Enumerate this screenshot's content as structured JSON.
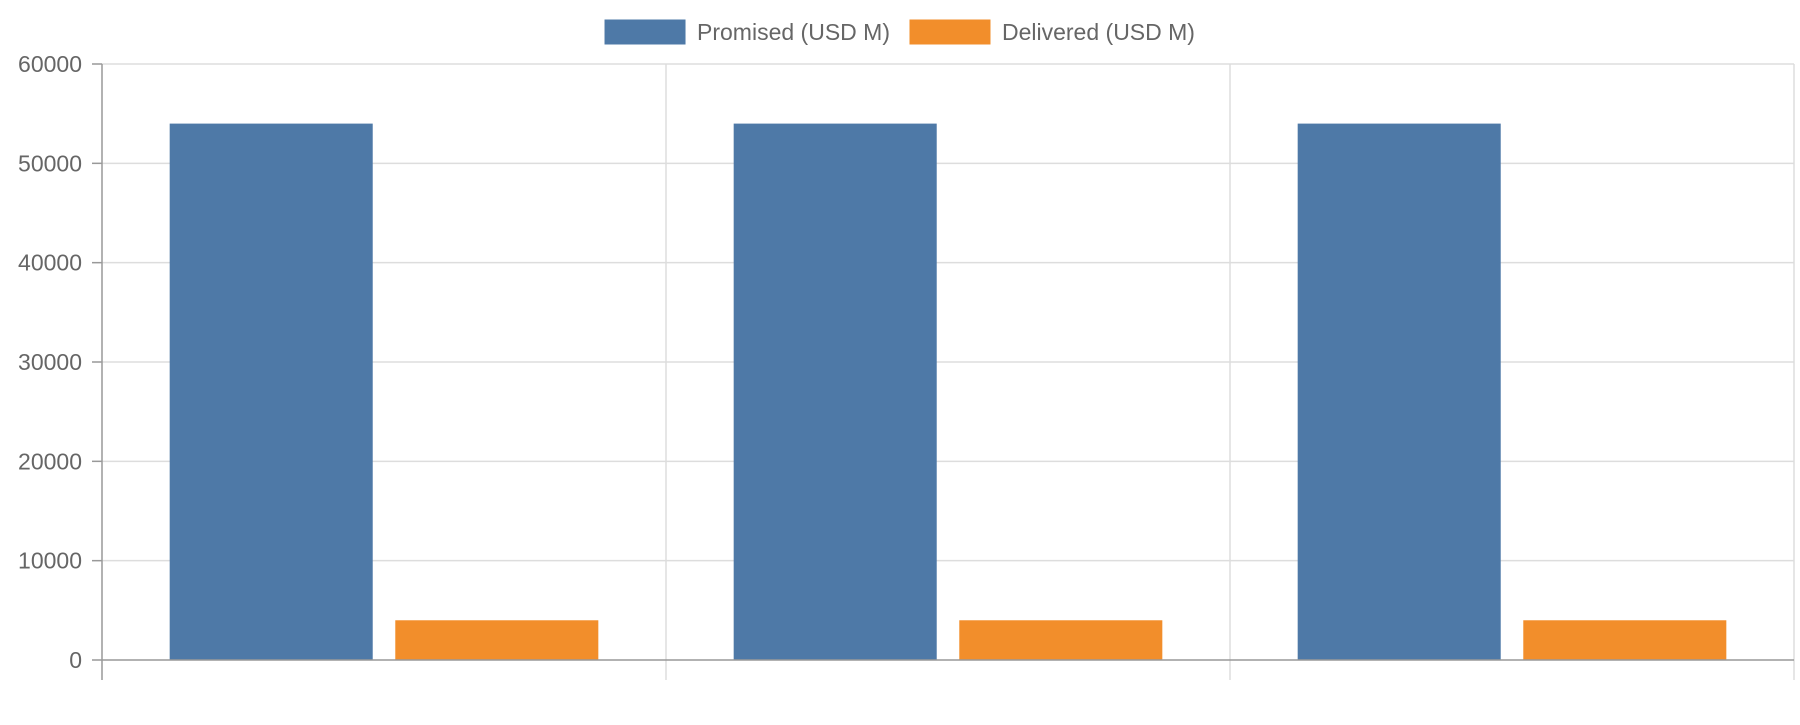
{
  "chart_data": {
    "type": "bar",
    "categories": [
      "",
      "",
      ""
    ],
    "series": [
      {
        "name": "Promised (USD M)",
        "color": "#4e79a7",
        "values": [
          54000,
          54000,
          54000
        ]
      },
      {
        "name": "Delivered (USD M)",
        "color": "#f28e2b",
        "values": [
          4000,
          4000,
          4000
        ]
      }
    ],
    "ylim": [
      0,
      60000
    ],
    "yticks": [
      0,
      10000,
      20000,
      30000,
      40000,
      50000,
      60000
    ],
    "grid": true,
    "legend_position": "top-center",
    "title": "",
    "xlabel": "",
    "ylabel": ""
  }
}
